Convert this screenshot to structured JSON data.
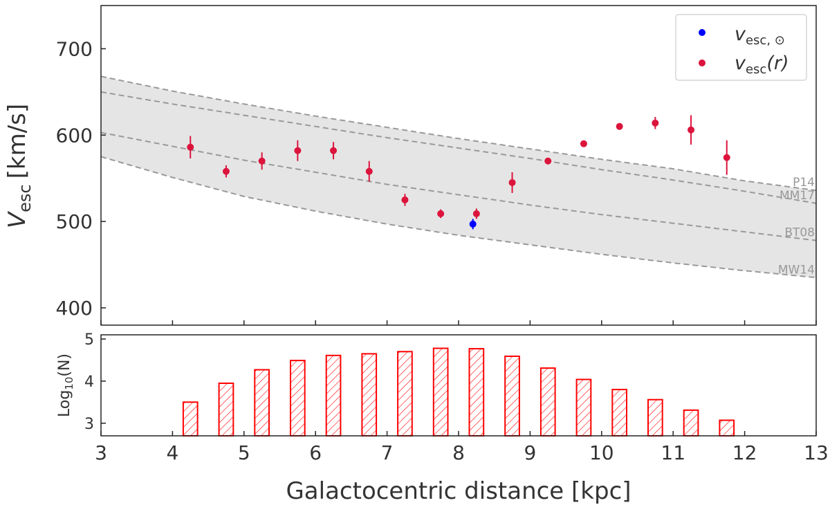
{
  "chart_data": [
    {
      "type": "scatter",
      "panel": "top",
      "ylabel": "V",
      "ylabel_sub": "esc",
      "ylabel_unit": "[km/s]",
      "xlim": [
        3,
        13
      ],
      "ylim": [
        380,
        750
      ],
      "yticks": [
        400,
        500,
        600,
        700
      ],
      "shaded_band": {
        "lower_model": "MW14",
        "upper_model": "P14",
        "color": "#e5e5e5"
      },
      "models": [
        {
          "name": "P14",
          "label": "P14",
          "x": [
            3,
            4,
            5,
            6,
            7,
            8,
            9,
            10,
            11,
            12,
            13
          ],
          "y": [
            668,
            651,
            636,
            622,
            609,
            596,
            584,
            572,
            561,
            547,
            536
          ]
        },
        {
          "name": "MM17",
          "label": "MM17",
          "x": [
            3,
            4,
            5,
            6,
            7,
            8,
            9,
            10,
            11,
            12,
            13
          ],
          "y": [
            650,
            636,
            623,
            610,
            597,
            585,
            573,
            560,
            548,
            535,
            521
          ]
        },
        {
          "name": "BT08",
          "label": "BT08",
          "x": [
            3,
            4,
            5,
            6,
            7,
            8,
            9,
            10,
            11,
            12,
            13
          ],
          "y": [
            603,
            587,
            571,
            557,
            543,
            531,
            519,
            508,
            498,
            488,
            478
          ]
        },
        {
          "name": "MW14",
          "label": "MW14",
          "x": [
            3,
            4,
            5,
            6,
            7,
            8,
            9,
            10,
            11,
            12,
            13
          ],
          "y": [
            575,
            551,
            529,
            512,
            497,
            484,
            473,
            462,
            452,
            443,
            435
          ]
        }
      ],
      "series": [
        {
          "name": "v_esc(r)",
          "color": "#dc143c",
          "points": [
            {
              "x": 4.25,
              "y": 586,
              "err": 13
            },
            {
              "x": 4.75,
              "y": 558,
              "err": 7
            },
            {
              "x": 5.25,
              "y": 570,
              "err": 10
            },
            {
              "x": 5.75,
              "y": 582,
              "err": 12
            },
            {
              "x": 6.25,
              "y": 582,
              "err": 10
            },
            {
              "x": 6.75,
              "y": 558,
              "err": 12
            },
            {
              "x": 7.25,
              "y": 525,
              "err": 7
            },
            {
              "x": 7.75,
              "y": 509,
              "err": 5
            },
            {
              "x": 8.25,
              "y": 509,
              "err": 6
            },
            {
              "x": 8.75,
              "y": 545,
              "err": 12
            },
            {
              "x": 9.25,
              "y": 570,
              "err": 3
            },
            {
              "x": 9.75,
              "y": 590,
              "err": 3
            },
            {
              "x": 10.25,
              "y": 610,
              "err": 3
            },
            {
              "x": 10.75,
              "y": 614,
              "err": 7
            },
            {
              "x": 11.25,
              "y": 606,
              "err": 17
            },
            {
              "x": 11.75,
              "y": 574,
              "err": 20
            }
          ]
        },
        {
          "name": "v_esc,sun",
          "color": "#0000ff",
          "points": [
            {
              "x": 8.2,
              "y": 497,
              "err": 6
            }
          ]
        }
      ],
      "legend": {
        "position": "top-right",
        "entries": [
          {
            "text": "v",
            "sub": "esc, ⊙",
            "suffix": "",
            "color": "#0000ff"
          },
          {
            "text": "v",
            "sub": "esc",
            "suffix": "(r)",
            "color": "#dc143c"
          }
        ]
      }
    },
    {
      "type": "bar",
      "panel": "bottom",
      "ylabel": "Log",
      "ylabel_sub": "10",
      "ylabel_suffix": "(N)",
      "xlabel": "Galactocentric distance [kpc]",
      "xlim": [
        3,
        13
      ],
      "ylim": [
        2.7,
        5.1
      ],
      "yticks": [
        3,
        4,
        5
      ],
      "xticks": [
        3,
        4,
        5,
        6,
        7,
        8,
        9,
        10,
        11,
        12,
        13
      ],
      "bar_color": "#ff0000",
      "bar_style": "hatched",
      "bar_width_kpc": 0.2,
      "x": [
        4.25,
        4.75,
        5.25,
        5.75,
        6.25,
        6.75,
        7.25,
        7.75,
        8.25,
        8.75,
        9.25,
        9.75,
        10.25,
        10.75,
        11.25,
        11.75
      ],
      "values": [
        3.5,
        3.95,
        4.27,
        4.49,
        4.61,
        4.65,
        4.7,
        4.78,
        4.77,
        4.59,
        4.31,
        4.04,
        3.8,
        3.56,
        3.31,
        3.07
      ]
    }
  ]
}
